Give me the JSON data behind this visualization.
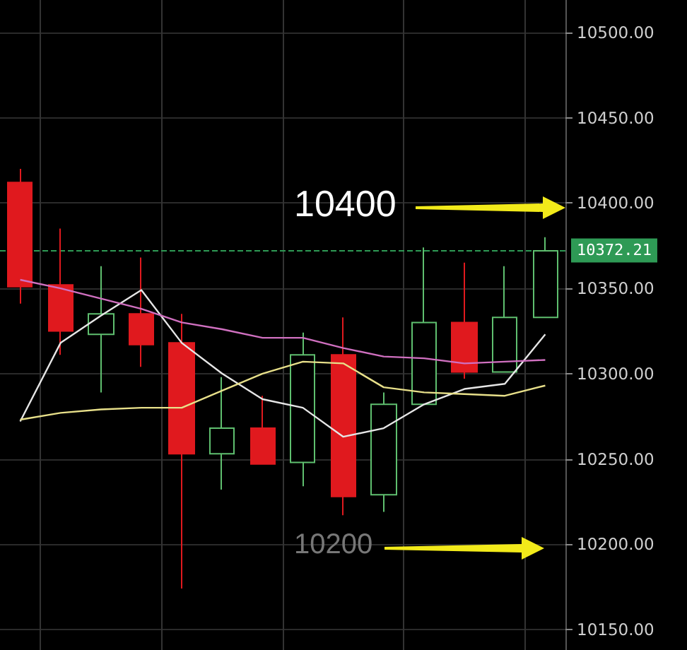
{
  "chart_data": {
    "type": "candlestick",
    "categories": [
      null,
      null,
      null,
      null,
      null,
      null,
      null,
      null,
      null,
      null,
      null,
      null,
      null,
      null
    ],
    "ohlc": [
      [
        10412,
        10420,
        10341,
        10351
      ],
      [
        10352,
        10385,
        10311,
        10325
      ],
      [
        10323,
        10363,
        10289,
        10335
      ],
      [
        10335,
        10368,
        10304,
        10317
      ],
      [
        10318,
        10335,
        10174,
        10253
      ],
      [
        10253,
        10298,
        10232,
        10268
      ],
      [
        10268,
        10287,
        10247,
        10247
      ],
      [
        10248,
        10324,
        10234,
        10311
      ],
      [
        10311,
        10333,
        10217,
        10228
      ],
      [
        10229,
        10289,
        10219,
        10282
      ],
      [
        10282,
        10374,
        10282,
        10330
      ],
      [
        10330,
        10365,
        10297,
        10301
      ],
      [
        10301,
        10363,
        10301,
        10333
      ],
      [
        10333,
        10380,
        10333,
        10372
      ]
    ],
    "colors": [
      "#e0191e",
      "#e0191e",
      "#5fbf6f",
      "#e0191e",
      "#e0191e",
      "#5fbf6f",
      "#e0191e",
      "#5fbf6f",
      "#e0191e",
      "#5fbf6f",
      "#5fbf6f",
      "#e0191e",
      "#5fbf6f",
      "#5fbf6f"
    ],
    "series": [
      {
        "type": "line",
        "color": "#e6e6e6",
        "values": [
          10272,
          10318,
          10334,
          10349,
          10318,
          10300,
          10285,
          10280,
          10263,
          10268,
          10282,
          10291,
          10294,
          10323
        ]
      },
      {
        "type": "line",
        "color": "#e8e08a",
        "values": [
          10273,
          10277,
          10279,
          10280,
          10280,
          10290,
          10300,
          10307,
          10306,
          10292,
          10289,
          10288,
          10287,
          10293
        ]
      },
      {
        "type": "line",
        "color": "#d070c0",
        "values": [
          10355,
          10350,
          10344,
          10338,
          10330,
          10326,
          10321,
          10321,
          10315,
          10310,
          10309,
          10306,
          10307,
          10308
        ]
      }
    ],
    "ylim": [
      10138,
      10519
    ],
    "yticks": [
      {
        "value": 10150,
        "label": "10150.00"
      },
      {
        "value": 10200,
        "label": "10200.00"
      },
      {
        "value": 10250,
        "label": "10250.00"
      },
      {
        "value": 10300,
        "label": "10300.00"
      },
      {
        "value": 10350,
        "label": "10350.00"
      },
      {
        "value": 10400,
        "label": "10400.00"
      },
      {
        "value": 10450,
        "label": "10450.00"
      },
      {
        "value": 10500,
        "label": "10500.00"
      }
    ],
    "ref_lines": [
      {
        "axis": "y",
        "value": 10372.21,
        "label": "10372.21",
        "color": "#2e9a55",
        "line_style": "dashed"
      }
    ],
    "annotations": [
      "10400",
      "10200"
    ],
    "grid": true,
    "tick_labels": "y"
  }
}
